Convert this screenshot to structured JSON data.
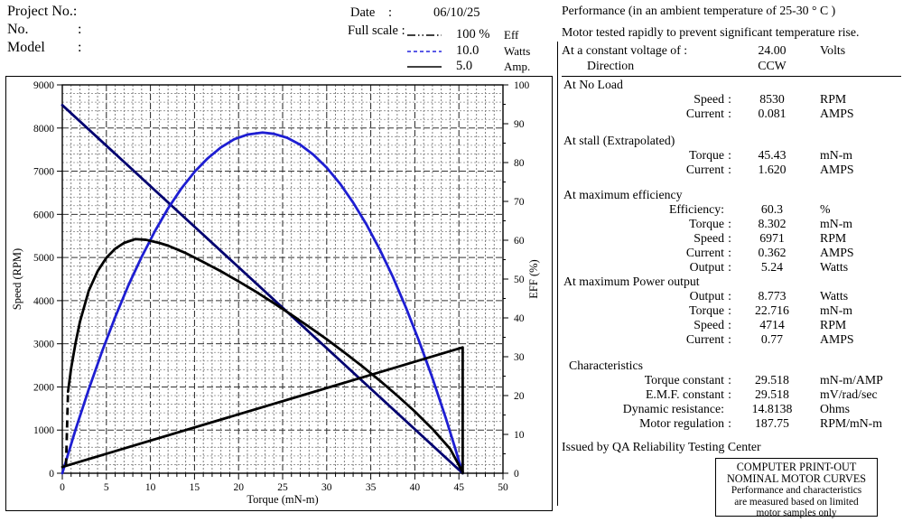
{
  "header": {
    "project_label": "Project No.:",
    "no_label": "No.",
    "no_colon": ":",
    "model_label": "Model",
    "model_colon": ":",
    "date_label": "Date",
    "date_colon": ":",
    "date_value": "06/10/25",
    "fullscale_label": "Full scale :",
    "legend": [
      {
        "style": "dashdotdot",
        "color": "#000000",
        "value": "100  %",
        "unit": "Eff"
      },
      {
        "style": "dashed",
        "color": "#2424dd",
        "value": "10.0",
        "unit": "Watts"
      },
      {
        "style": "solid",
        "color": "#000000",
        "value": "5.0",
        "unit": "Amp."
      }
    ]
  },
  "chart_data": {
    "type": "line",
    "title": "",
    "xlabel": "Torque (mN-m)",
    "ylabel_left": "Speed (RPM)",
    "ylabel_right": "EFF (%)",
    "x_axis": {
      "min": 0,
      "max": 50,
      "major_step": 5,
      "minor_step": 1
    },
    "y_left_axis": {
      "min": 0,
      "max": 9000,
      "major_step": 1000,
      "minor_step": 200
    },
    "y_right_axis": {
      "min": 0,
      "max": 100,
      "major_step": 10,
      "minor_step": 5
    },
    "grid": true,
    "series": [
      {
        "name": "speed-line",
        "unit": "RPM",
        "axis_max": 9000,
        "color": "#000070",
        "points": [
          [
            0,
            8530
          ],
          [
            45.43,
            0
          ]
        ]
      },
      {
        "name": "power-output-curve",
        "unit": "Watts",
        "axis_max": 10,
        "color": "#1e1ed2",
        "points": [
          [
            0,
            0
          ],
          [
            1.5,
            1.12
          ],
          [
            3,
            2.16
          ],
          [
            4.5,
            3.13
          ],
          [
            6,
            4.02
          ],
          [
            7.5,
            4.84
          ],
          [
            9,
            5.57
          ],
          [
            10.5,
            6.23
          ],
          [
            12,
            6.82
          ],
          [
            13.5,
            7.33
          ],
          [
            15,
            7.76
          ],
          [
            16.5,
            8.11
          ],
          [
            18,
            8.39
          ],
          [
            19.5,
            8.6
          ],
          [
            21,
            8.72
          ],
          [
            22.716,
            8.773
          ],
          [
            24,
            8.74
          ],
          [
            25.5,
            8.64
          ],
          [
            27,
            8.46
          ],
          [
            28.5,
            8.2
          ],
          [
            30,
            7.87
          ],
          [
            31.5,
            7.46
          ],
          [
            33,
            6.97
          ],
          [
            34.5,
            6.41
          ],
          [
            36,
            5.77
          ],
          [
            37.5,
            5.06
          ],
          [
            39,
            4.26
          ],
          [
            40.5,
            3.39
          ],
          [
            42,
            2.45
          ],
          [
            43.5,
            1.43
          ],
          [
            44.5,
            0.7
          ],
          [
            45.43,
            0
          ]
        ]
      },
      {
        "name": "efficiency-curve",
        "unit": "%",
        "axis_max": 100,
        "color": "#000000",
        "start_dash": [
          [
            0.42,
            2
          ],
          [
            0.65,
            21
          ]
        ],
        "points": [
          [
            0.65,
            21
          ],
          [
            1,
            27
          ],
          [
            1.5,
            33.5
          ],
          [
            2,
            39
          ],
          [
            2.5,
            43
          ],
          [
            3,
            47
          ],
          [
            4,
            52
          ],
          [
            5,
            55.5
          ],
          [
            6,
            57.8
          ],
          [
            7,
            59.3
          ],
          [
            8.302,
            60.3
          ],
          [
            9.5,
            60.1
          ],
          [
            11,
            59.3
          ],
          [
            12,
            58.6
          ],
          [
            14,
            56.7
          ],
          [
            16,
            54.4
          ],
          [
            18,
            52
          ],
          [
            20,
            49.4
          ],
          [
            22,
            46.7
          ],
          [
            24,
            43.8
          ],
          [
            26,
            40.8
          ],
          [
            28,
            37.7
          ],
          [
            30,
            34.5
          ],
          [
            32,
            31.1
          ],
          [
            34,
            27.6
          ],
          [
            36,
            23.9
          ],
          [
            38,
            20
          ],
          [
            40,
            15.9
          ],
          [
            42,
            11.4
          ],
          [
            44,
            6.3
          ],
          [
            45.43,
            0.3
          ]
        ]
      },
      {
        "name": "current-line",
        "unit": "Amp",
        "axis_max": 5,
        "color": "#000000",
        "points": [
          [
            0,
            0.081
          ],
          [
            45.43,
            1.62
          ],
          [
            45.43,
            0
          ]
        ]
      }
    ]
  },
  "right_panel": {
    "line1": "Performance (in an ambient temperature of 25-30 ° C )",
    "line2": "Motor tested rapidly to prevent significant temperature rise.",
    "voltage_row": {
      "label": "At a constant voltage of :",
      "value": "24.00",
      "unit": "Volts"
    },
    "direction_row": {
      "label": "Direction",
      "value": "CCW",
      "unit": ""
    },
    "sections": [
      {
        "title": "At No Load",
        "rows": [
          {
            "label": "Speed",
            "colon": ":",
            "value": "8530",
            "unit": "RPM"
          },
          {
            "label": "Current",
            "colon": ":",
            "value": "0.081",
            "unit": "AMPS"
          }
        ]
      },
      {
        "title": "At stall (Extrapolated)",
        "rows": [
          {
            "label": "Torque",
            "colon": ":",
            "value": "45.43",
            "unit": "mN-m"
          },
          {
            "label": "Current",
            "colon": ":",
            "value": "1.620",
            "unit": "AMPS"
          }
        ]
      },
      {
        "title": "At maximum efficiency",
        "rows": [
          {
            "label": "Efficiency:",
            "colon": "",
            "value": "60.3",
            "unit": "%"
          },
          {
            "label": "Torque",
            "colon": ":",
            "value": "8.302",
            "unit": "mN-m"
          },
          {
            "label": "Speed",
            "colon": ":",
            "value": "6971",
            "unit": "RPM"
          },
          {
            "label": "Current",
            "colon": ":",
            "value": "0.362",
            "unit": "AMPS"
          },
          {
            "label": "Output",
            "colon": ":",
            "value": "5.24",
            "unit": "Watts"
          }
        ]
      },
      {
        "title": "At maximum Power output",
        "rows": [
          {
            "label": "Output",
            "colon": ":",
            "value": "8.773",
            "unit": "Watts"
          },
          {
            "label": "Torque",
            "colon": ":",
            "value": "22.716",
            "unit": "mN-m"
          },
          {
            "label": "Speed",
            "colon": ":",
            "value": "4714",
            "unit": "RPM"
          },
          {
            "label": "Current",
            "colon": ":",
            "value": "0.77",
            "unit": "AMPS"
          }
        ]
      },
      {
        "title": "Characteristics",
        "rows": [
          {
            "label": "Torque constant",
            "colon": ":",
            "value": "29.518",
            "unit": "mN-m/AMP"
          },
          {
            "label": "E.M.F. constant",
            "colon": ":",
            "value": "29.518",
            "unit": "mV/rad/sec"
          },
          {
            "label": "Dynamic resistance:",
            "colon": "",
            "value": "14.8138",
            "unit": "Ohms"
          },
          {
            "label": "Motor regulation",
            "colon": ":",
            "value": "187.75",
            "unit": "RPM/mN-m"
          }
        ]
      }
    ],
    "issued_by": "Issued by QA Reliability Testing  Center",
    "stamp_box": {
      "line1": "COMPUTER PRINT-OUT",
      "line2": "NOMINAL MOTOR CURVES",
      "line3": "Performance and characteristics",
      "line4": "are  measured  based  on  limited",
      "line5": "motor samples only"
    }
  }
}
